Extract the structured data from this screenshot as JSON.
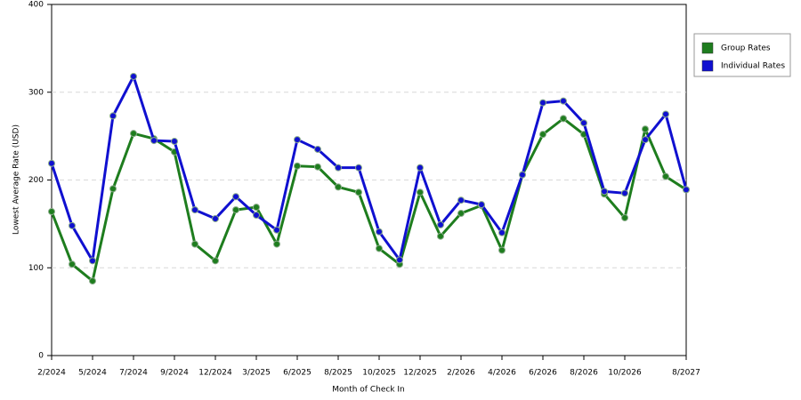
{
  "chart_data": {
    "type": "line",
    "x_label": "Month of Check In",
    "y_label": "Lowest Average Rate (USD)",
    "categories": [
      "2/2024",
      null,
      "5/2024",
      null,
      "7/2024",
      null,
      "9/2024",
      null,
      "12/2024",
      null,
      "3/2025",
      null,
      "6/2025",
      null,
      "8/2025",
      null,
      "10/2025",
      null,
      "12/2025",
      null,
      "2/2026",
      null,
      "4/2026",
      null,
      "6/2026",
      null,
      "8/2026",
      null,
      "10/2026",
      null,
      null,
      "8/2027"
    ],
    "series": [
      {
        "name": "Group Rates",
        "color": "#1e7d1e",
        "values": [
          164,
          104,
          85,
          190,
          253,
          247,
          232,
          127,
          108,
          166,
          169,
          127,
          216,
          215,
          192,
          186,
          122,
          104,
          186,
          136,
          162,
          171,
          120,
          206,
          252,
          270,
          252,
          184,
          157,
          258,
          204,
          189
        ]
      },
      {
        "name": "Individual Rates",
        "color": "#1010d0",
        "values": [
          219,
          148,
          108,
          273,
          318,
          245,
          244,
          166,
          156,
          181,
          160,
          143,
          246,
          235,
          214,
          214,
          141,
          109,
          214,
          149,
          177,
          172,
          140,
          206,
          288,
          290,
          265,
          187,
          185,
          246,
          275,
          189
        ]
      }
    ],
    "ylim": [
      0,
      400
    ],
    "yticks": [
      0,
      100,
      200,
      300,
      400
    ],
    "grid": true,
    "legend": "right"
  }
}
